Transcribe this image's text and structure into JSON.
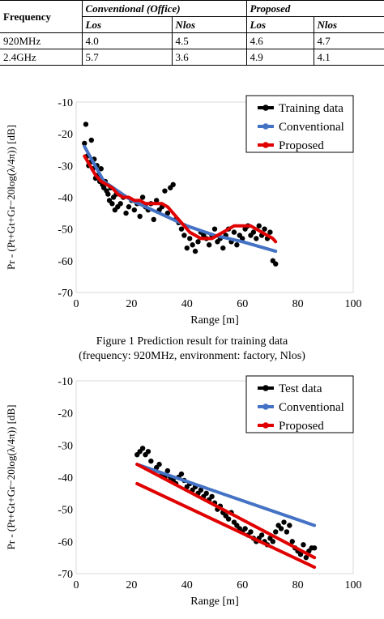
{
  "table": {
    "headers": [
      "Frequency",
      "Conventional (Office)",
      "Proposed"
    ],
    "subheaders": [
      "",
      "Los",
      "Nlos",
      "Los",
      "Nlos"
    ],
    "rows": [
      [
        "920MHz",
        "4.0",
        "4.5",
        "4.6",
        "4.7"
      ],
      [
        "2.4GHz",
        "5.7",
        "3.6",
        "4.9",
        "4.1"
      ]
    ]
  },
  "figure1_caption": {
    "line1": "Figure 1 Prediction result for training data",
    "line2": "(frequency: 920MHz, environment: factory, Nlos)"
  },
  "chart_data": [
    {
      "type": "scatter",
      "xlabel": "Range [m]",
      "ylabel": "Pr - (Pt+Gt+Gr−20log(λ/4π))   [dB]",
      "xlim": [
        0,
        100
      ],
      "ylim": [
        -70,
        -10
      ],
      "xticks": [
        "0",
        "20",
        "40",
        "60",
        "80",
        "100"
      ],
      "yticks": [
        "-10",
        "-20",
        "-30",
        "-40",
        "-50",
        "-60",
        "-70"
      ],
      "grid": false,
      "legend": "top-right",
      "colors": {
        "data": "#000000",
        "conventional": "#4472c4",
        "proposed": "#e00000"
      },
      "series": [
        {
          "name": "Training data",
          "x": [
            3,
            3.5,
            4,
            4.5,
            5,
            5.5,
            6,
            6.5,
            7,
            7.5,
            8,
            8.5,
            9,
            9.5,
            10,
            10.5,
            11,
            11.5,
            12,
            12.5,
            13,
            13.5,
            14,
            14.5,
            15,
            16,
            17,
            18,
            19,
            20,
            21,
            22,
            23,
            24,
            25,
            26,
            27,
            28,
            29,
            30,
            31,
            32,
            33,
            34,
            35,
            36,
            37,
            38,
            39,
            40,
            41,
            42,
            43,
            44,
            45,
            46,
            47,
            48,
            49,
            50,
            51,
            52,
            53,
            54,
            55,
            56,
            57,
            58,
            59,
            60,
            61,
            62,
            63,
            64,
            65,
            66,
            67,
            68,
            69,
            70,
            71,
            72
          ],
          "y": [
            -23,
            -17,
            -27,
            -30,
            -29,
            -22,
            -31,
            -28,
            -34,
            -30,
            -33,
            -35,
            -31,
            -36,
            -37,
            -35,
            -38,
            -39,
            -41,
            -37,
            -42,
            -40,
            -44,
            -39,
            -43,
            -42,
            -40,
            -45,
            -43,
            -41,
            -44,
            -42,
            -46,
            -40,
            -43,
            -44,
            -42,
            -47,
            -41,
            -44,
            -43,
            -38,
            -45,
            -37,
            -36,
            -47,
            -48,
            -50,
            -52,
            -56,
            -53,
            -55,
            -57,
            -54,
            -51,
            -52,
            -53,
            -55,
            -52,
            -50,
            -54,
            -53,
            -56,
            -52,
            -50,
            -54,
            -51,
            -55,
            -52,
            -53,
            -50,
            -49,
            -52,
            -51,
            -53,
            -49,
            -52,
            -50,
            -53,
            -51,
            -60,
            -61
          ]
        },
        {
          "name": "Conventional",
          "x": [
            3,
            10,
            20,
            30,
            40,
            50,
            60,
            72
          ],
          "y": [
            -24,
            -35,
            -41,
            -45,
            -49,
            -52,
            -54,
            -57
          ]
        },
        {
          "name": "Proposed",
          "x": [
            3,
            5,
            7,
            9,
            11,
            13,
            15,
            17,
            19,
            21,
            23,
            25,
            27,
            29,
            31,
            33,
            35,
            37,
            39,
            41,
            43,
            45,
            47,
            49,
            51,
            53,
            55,
            57,
            59,
            61,
            63,
            65,
            67,
            69,
            71,
            72
          ],
          "y": [
            -27,
            -30,
            -33,
            -35,
            -36,
            -37,
            -39,
            -40,
            -40,
            -41,
            -41,
            -42,
            -42,
            -42,
            -42,
            -43,
            -45,
            -47,
            -49,
            -51,
            -52,
            -53,
            -53,
            -53,
            -52,
            -51,
            -50,
            -49,
            -49,
            -49,
            -49,
            -50,
            -51,
            -52,
            -53,
            -54
          ]
        }
      ]
    },
    {
      "type": "scatter",
      "xlabel": "Range [m]",
      "ylabel": "Pr - (Pt+Gt+Gr−20log(λ/4π))   [dB]",
      "xlim": [
        0,
        100
      ],
      "ylim": [
        -70,
        -10
      ],
      "xticks": [
        "0",
        "20",
        "40",
        "60",
        "80",
        "100"
      ],
      "yticks": [
        "-10",
        "-20",
        "-30",
        "-40",
        "-50",
        "-60",
        "-70"
      ],
      "grid": false,
      "legend": "top-right",
      "colors": {
        "data": "#000000",
        "conventional": "#4472c4",
        "proposed": "#e00000"
      },
      "series": [
        {
          "name": "Test data",
          "x": [
            22,
            23,
            24,
            25,
            26,
            27,
            28,
            29,
            30,
            31,
            32,
            33,
            34,
            35,
            36,
            37,
            38,
            39,
            40,
            41,
            42,
            43,
            44,
            45,
            46,
            47,
            48,
            49,
            50,
            51,
            52,
            53,
            54,
            55,
            56,
            57,
            58,
            59,
            60,
            61,
            62,
            63,
            64,
            65,
            66,
            67,
            68,
            69,
            70,
            71,
            72,
            73,
            74,
            75,
            76,
            77,
            78,
            79,
            80,
            81,
            82,
            83,
            84,
            85,
            86
          ],
          "y": [
            -33,
            -32,
            -31,
            -33,
            -32,
            -35,
            -38,
            -37,
            -36,
            -39,
            -40,
            -38,
            -40,
            -41,
            -42,
            -40,
            -39,
            -41,
            -43,
            -42,
            -44,
            -43,
            -45,
            -44,
            -46,
            -45,
            -47,
            -46,
            -48,
            -50,
            -49,
            -51,
            -52,
            -53,
            -51,
            -54,
            -55,
            -56,
            -57,
            -56,
            -58,
            -57,
            -59,
            -60,
            -59,
            -58,
            -60,
            -61,
            -59,
            -60,
            -57,
            -55,
            -56,
            -54,
            -57,
            -55,
            -60,
            -62,
            -63,
            -64,
            -61,
            -65,
            -63,
            -62,
            -62
          ]
        },
        {
          "name": "Conventional",
          "x": [
            22,
            86
          ],
          "y": [
            -36,
            -55
          ]
        },
        {
          "name": "Proposed",
          "x": [
            22,
            86
          ],
          "y": [
            -36,
            -65
          ]
        },
        {
          "name": "Proposed",
          "x": [
            22,
            86
          ],
          "y": [
            -42,
            -68
          ]
        }
      ]
    }
  ]
}
